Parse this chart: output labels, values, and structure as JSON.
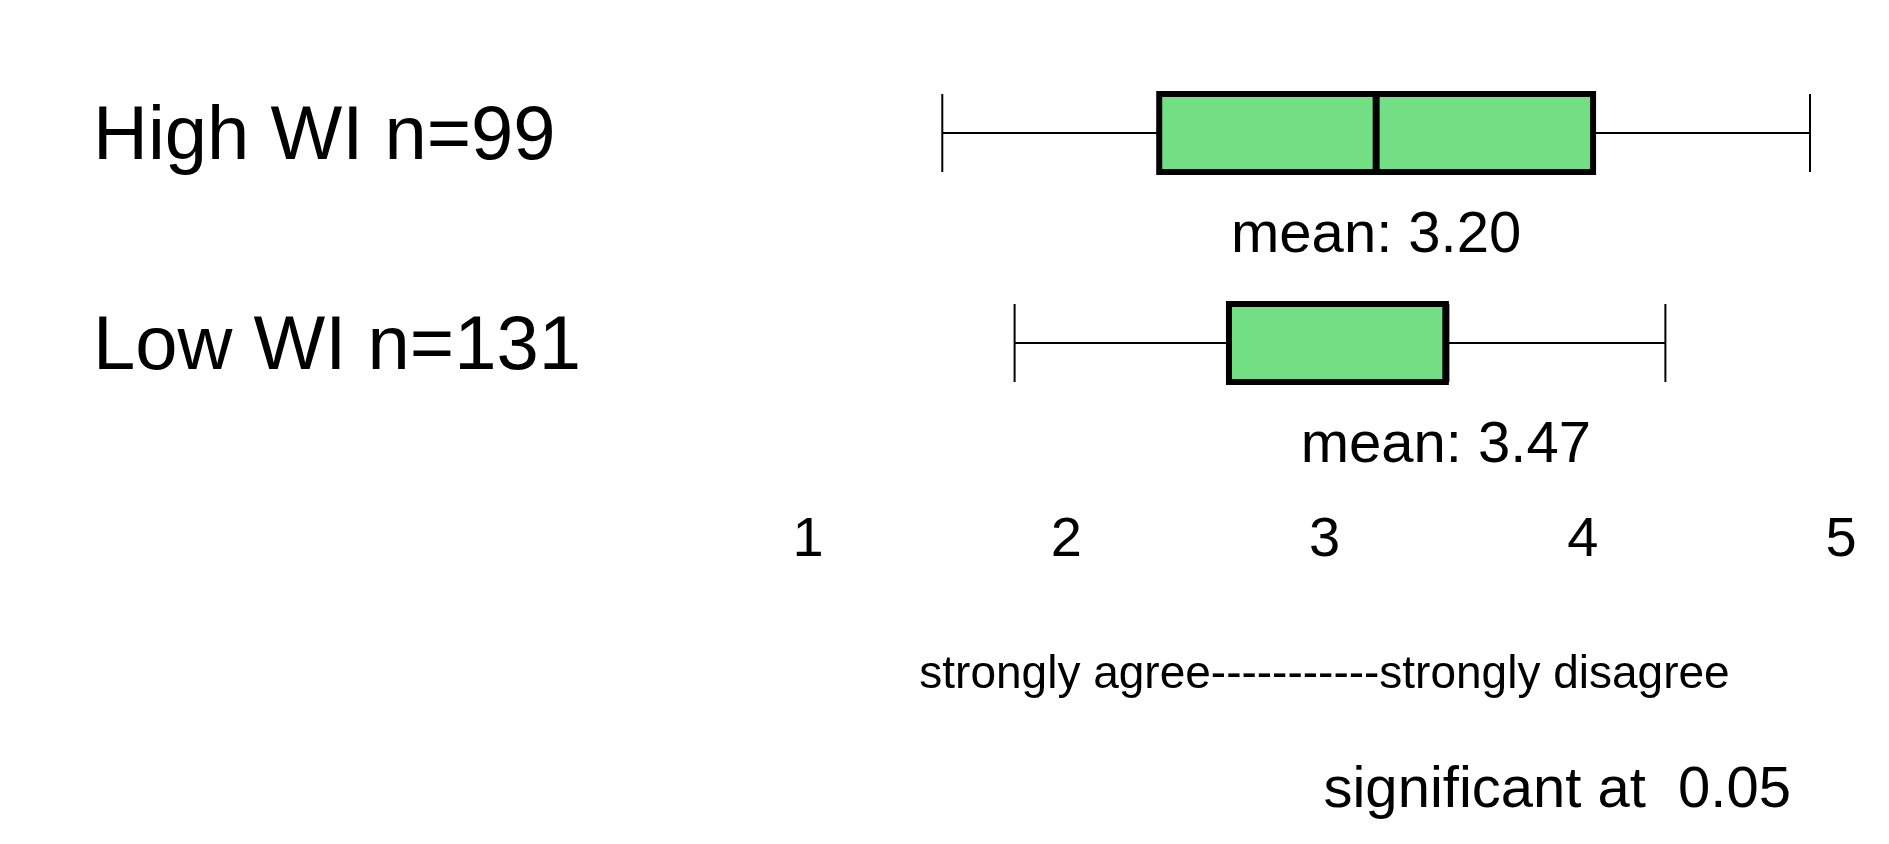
{
  "chart_data": {
    "type": "box",
    "orientation": "horizontal",
    "categories": [
      "High WI n=99",
      "Low WI n=131"
    ],
    "boxes": [
      {
        "low": 1.52,
        "q1": 2.36,
        "median": 3.2,
        "q3": 4.04,
        "high": 4.88
      },
      {
        "low": 1.8,
        "q1": 2.63,
        "median": 3.47,
        "q3": 3.47,
        "high": 4.32
      }
    ],
    "color": "#72df84",
    "xlim": [
      1,
      5
    ],
    "xticks": [
      1,
      2,
      3,
      4,
      5
    ],
    "xlabel": "strongly agree-----------strongly disagree",
    "grid": false,
    "annotations": [
      {
        "text": "mean: 3.20",
        "x": 3.2,
        "y": "High WI n=99"
      },
      {
        "text": "mean: 3.47",
        "x": 3.47,
        "y": "Low WI n=131"
      },
      "significant at  0.05"
    ]
  }
}
